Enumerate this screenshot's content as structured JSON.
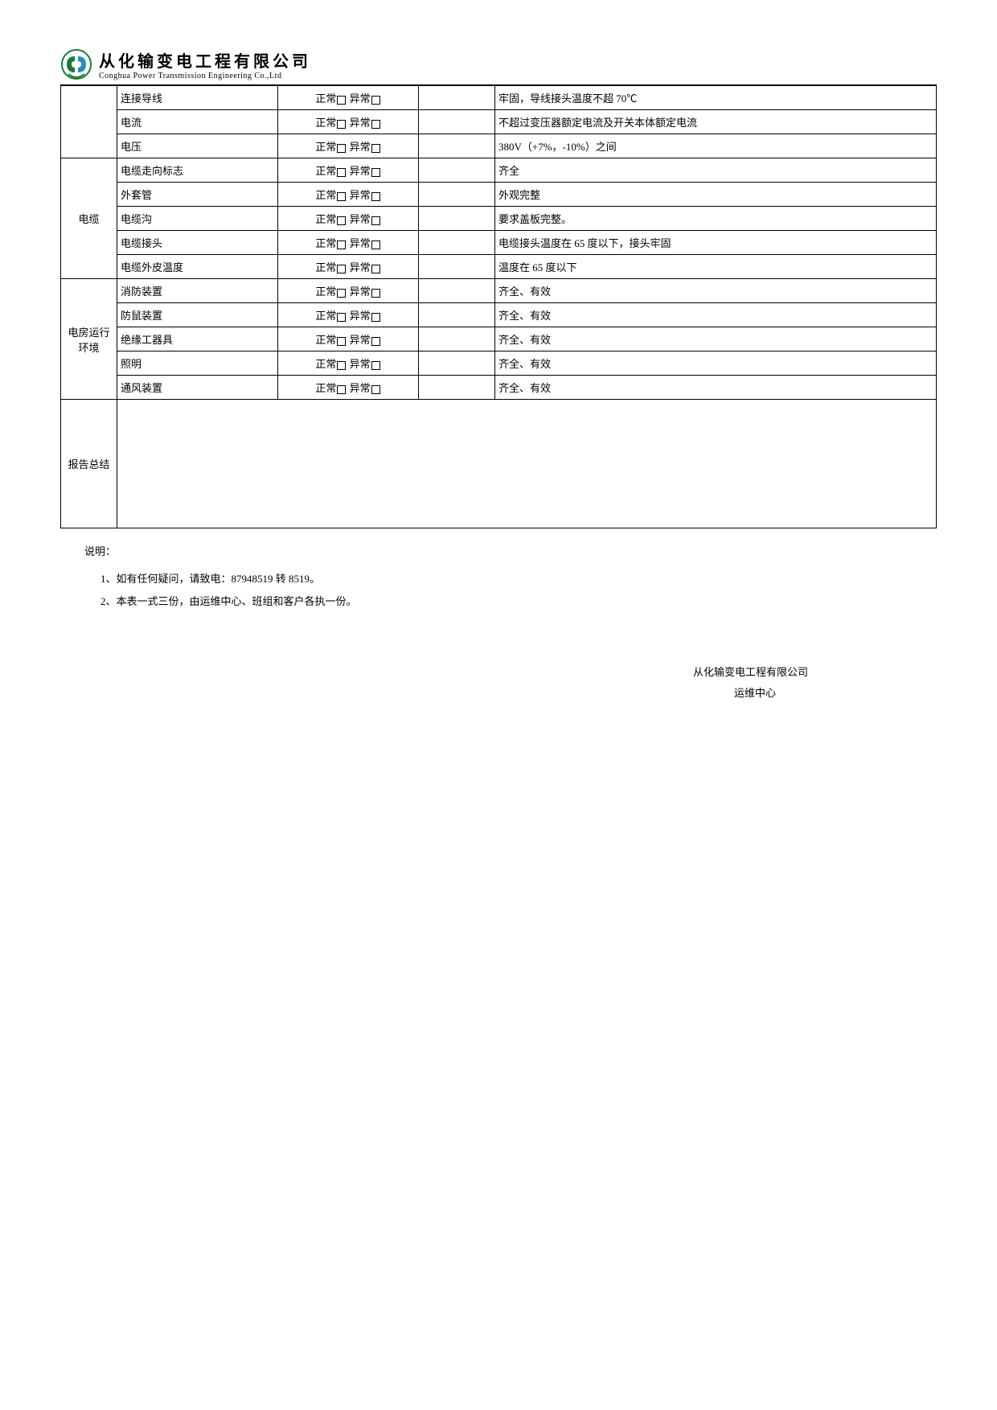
{
  "header": {
    "company_cn": "从化输变电工程有限公司",
    "company_en": "Conghua Power Transmission Engineering Co.,Ltd"
  },
  "status_labels": {
    "normal": "正常",
    "abnormal": "异常"
  },
  "sections": [
    {
      "category": "",
      "rows": [
        {
          "item": "连接导线",
          "standard": "牢固，导线接头温度不超 70℃"
        },
        {
          "item": "电流",
          "standard": "不超过变压器额定电流及开关本体额定电流"
        },
        {
          "item": "电压",
          "standard": "380V（+7%，-10%）之间"
        }
      ]
    },
    {
      "category": "电缆",
      "rows": [
        {
          "item": "电缆走向标志",
          "standard": "齐全"
        },
        {
          "item": "外套管",
          "standard": "外观完整"
        },
        {
          "item": "电缆沟",
          "standard": "要求盖板完整。"
        },
        {
          "item": "电缆接头",
          "standard": "电缆接头温度在 65 度以下，接头牢固"
        },
        {
          "item": "电缆外皮温度",
          "standard": "温度在 65 度以下"
        }
      ]
    },
    {
      "category": "电房运行环境",
      "rows": [
        {
          "item": "消防装置",
          "standard": "齐全、有效"
        },
        {
          "item": "防鼠装置",
          "standard": "齐全、有效"
        },
        {
          "item": "绝缘工器具",
          "standard": "齐全、有效"
        },
        {
          "item": "照明",
          "standard": "齐全、有效"
        },
        {
          "item": "通风装置",
          "standard": "齐全、有效"
        }
      ]
    }
  ],
  "summary_label": "报告总结",
  "notes": {
    "title": "说明：",
    "items": [
      "1、如有任何疑问，请致电：87948519 转 8519。",
      "2、本表一式三份，由运维中心、班组和客户各执一份。"
    ]
  },
  "footer": {
    "line1": "从化输变电工程有限公司",
    "line2": "运维中心"
  },
  "colors": {
    "logo_bg": "#1a7a3a",
    "logo_accent": "#2090c0",
    "border": "#000000",
    "text": "#000000",
    "background": "#ffffff"
  }
}
